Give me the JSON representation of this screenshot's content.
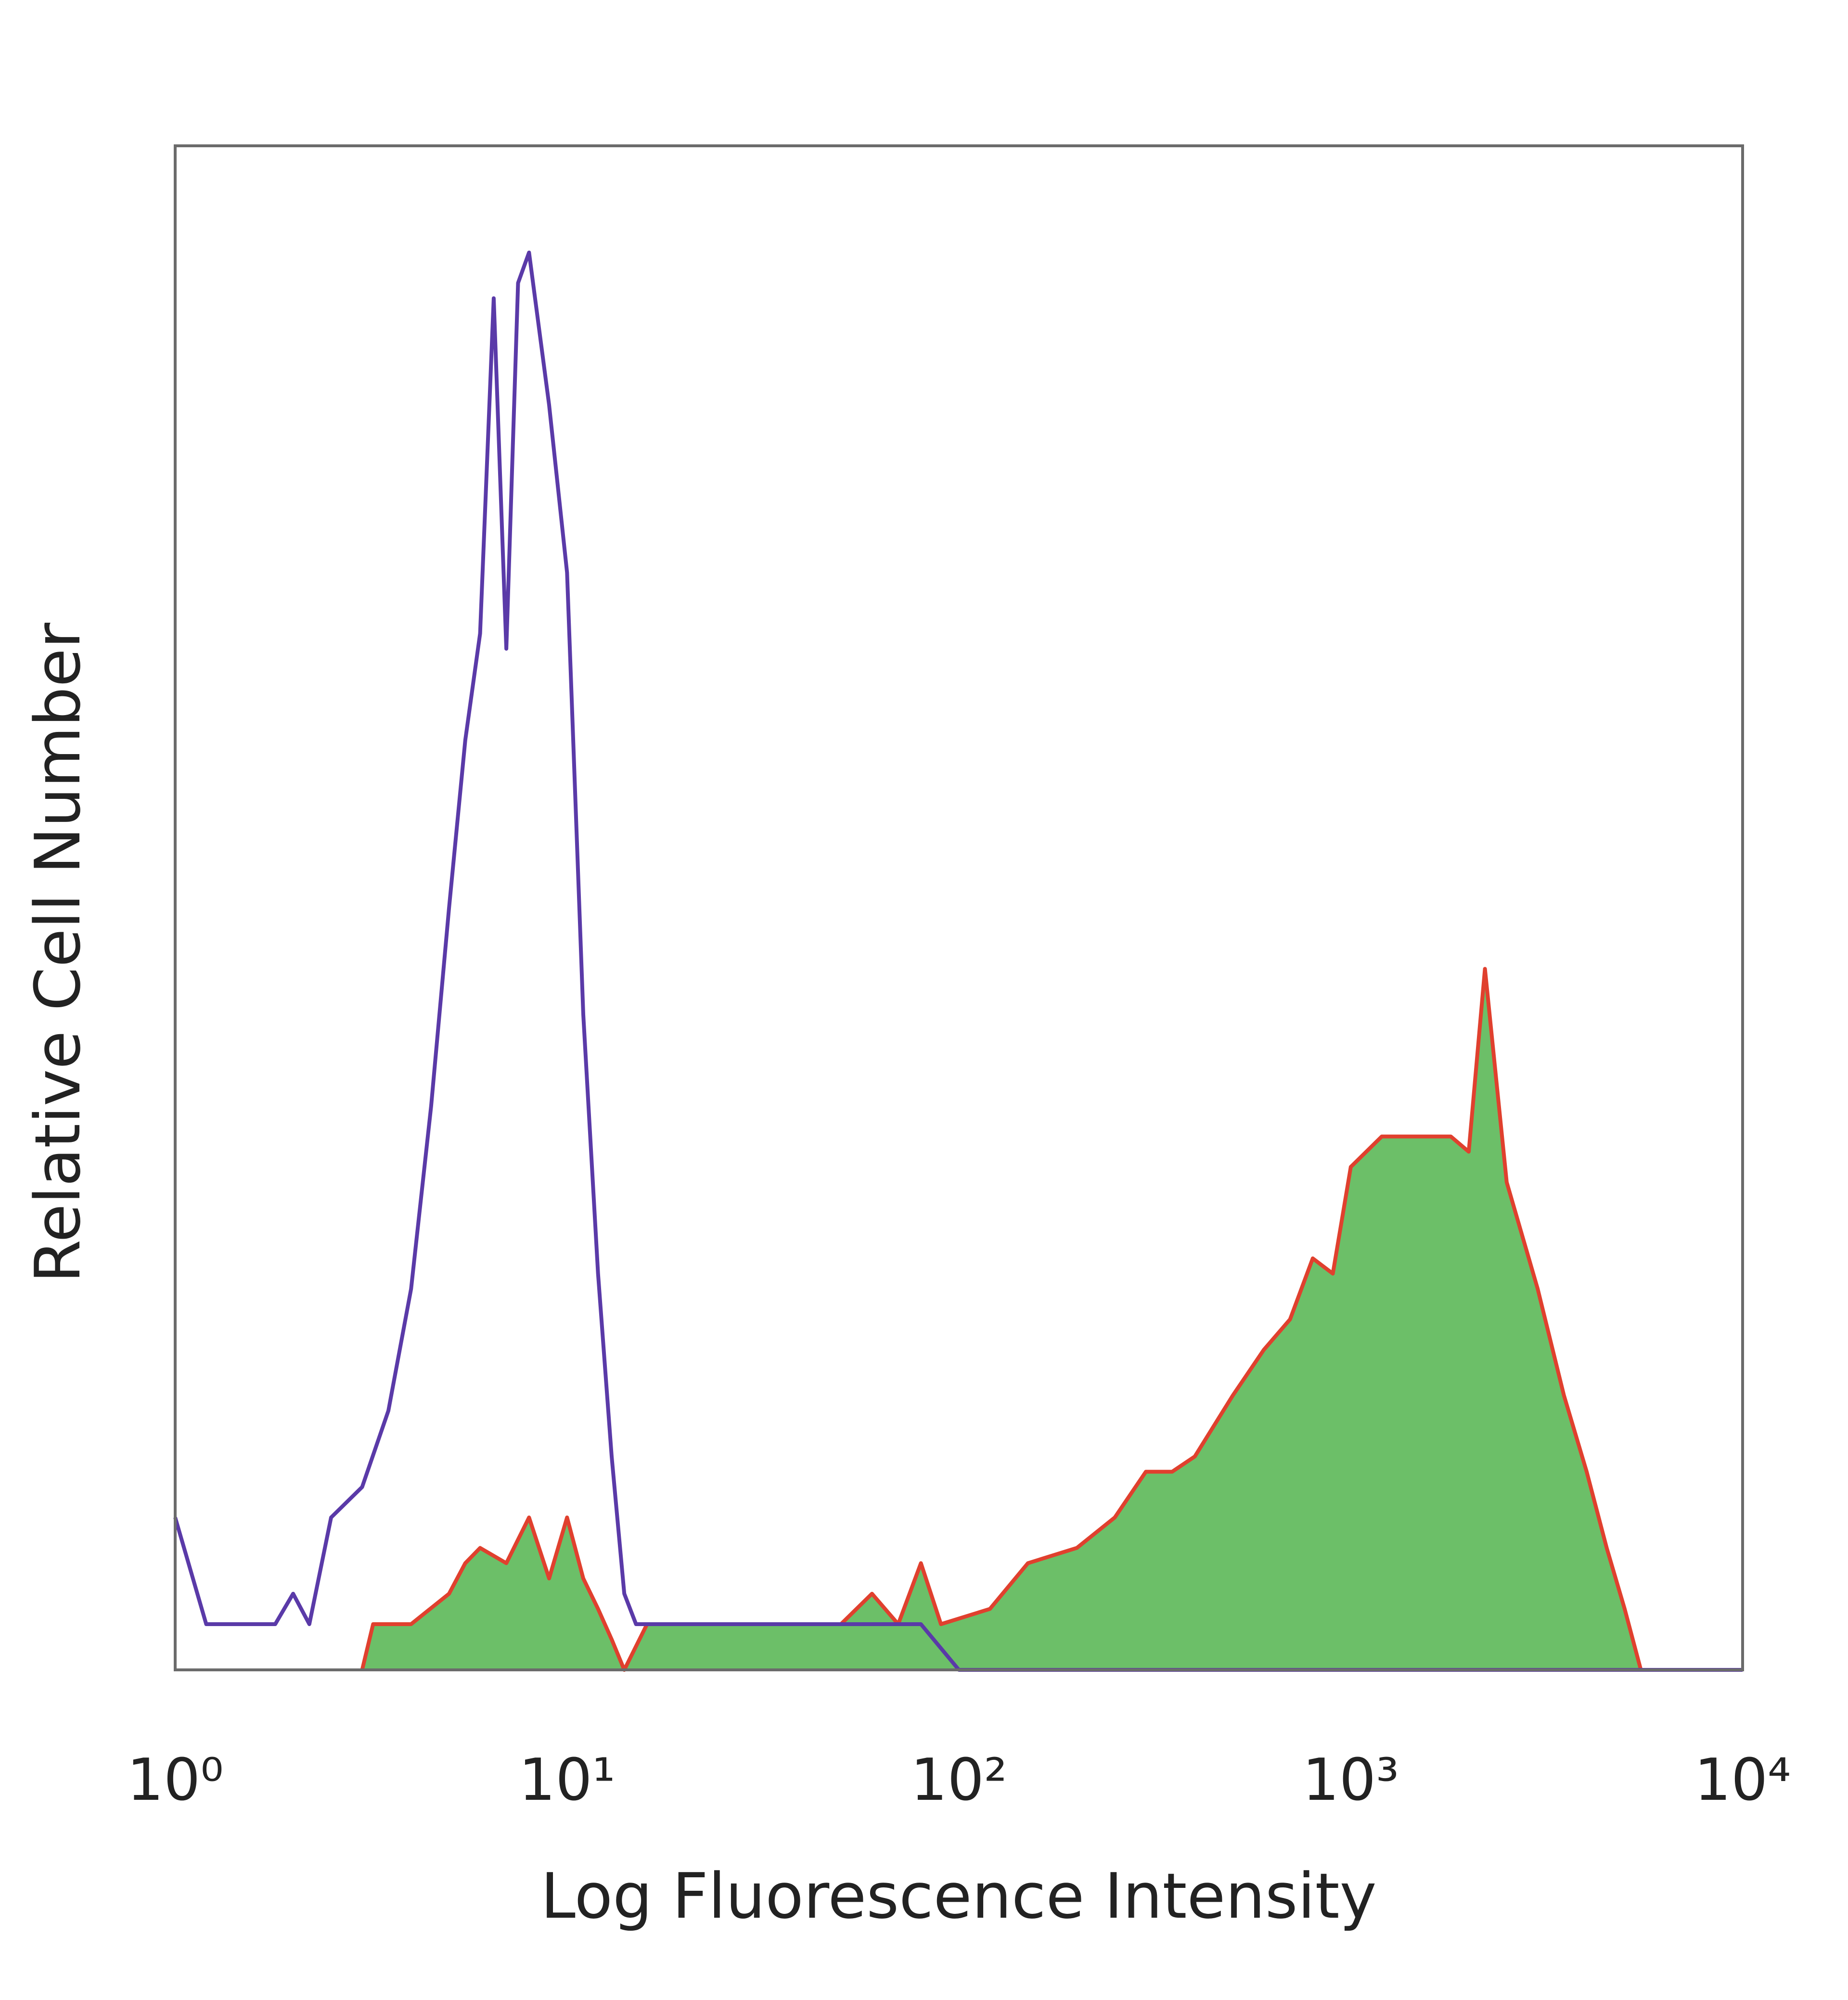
{
  "chart_data": {
    "type": "histogram-overlay",
    "x_label": "Log Fluorescence Intensity",
    "y_label": "Relative Cell Number",
    "log_x": true,
    "xlim": [
      1,
      10000
    ],
    "xticks": [
      {
        "value": 1,
        "label": "10⁰"
      },
      {
        "value": 10,
        "label": "10¹"
      },
      {
        "value": 100,
        "label": "10²"
      },
      {
        "value": 1000,
        "label": "10³"
      },
      {
        "value": 10000,
        "label": "10⁴"
      }
    ],
    "ylim": [
      0,
      100
    ],
    "series": [
      {
        "color": "#e0402e",
        "fill": "#6cbf68",
        "x": [
          3,
          3.2,
          4,
          5,
          5.5,
          6,
          7,
          8,
          9,
          10,
          11,
          12,
          13,
          14,
          16,
          20,
          30,
          50,
          60,
          70,
          80,
          90,
          120,
          150,
          200,
          250,
          300,
          350,
          400,
          500,
          600,
          700,
          800,
          900,
          1000,
          1200,
          1500,
          1800,
          2000,
          2200,
          2500,
          3000,
          3500,
          4000,
          4500,
          5000,
          5500
        ],
        "values": [
          0,
          3,
          3,
          5,
          7,
          8,
          7,
          10,
          6,
          10,
          6,
          4,
          2,
          0,
          3,
          3,
          3,
          3,
          5,
          3,
          7,
          3,
          4,
          7,
          8,
          10,
          13,
          13,
          14,
          18,
          21,
          23,
          27,
          26,
          33,
          35,
          35,
          35,
          34,
          46,
          32,
          25,
          18,
          13,
          8,
          4,
          0
        ]
      },
      {
        "color": "#5a3aa8",
        "x": [
          1,
          1.2,
          1.5,
          1.8,
          2,
          2.2,
          2.5,
          3,
          3.5,
          4,
          4.5,
          5,
          5.5,
          6,
          6.5,
          7,
          7.5,
          8,
          9,
          10,
          11,
          12,
          13,
          14,
          15,
          20,
          30,
          50,
          80,
          100,
          10000
        ],
        "values": [
          10,
          3,
          3,
          3,
          5,
          3,
          10,
          12,
          17,
          25,
          37,
          50,
          61,
          68,
          90,
          67,
          91,
          93,
          83,
          72,
          43,
          26,
          14,
          5,
          3,
          3,
          3,
          3,
          3,
          0,
          0
        ]
      }
    ]
  }
}
